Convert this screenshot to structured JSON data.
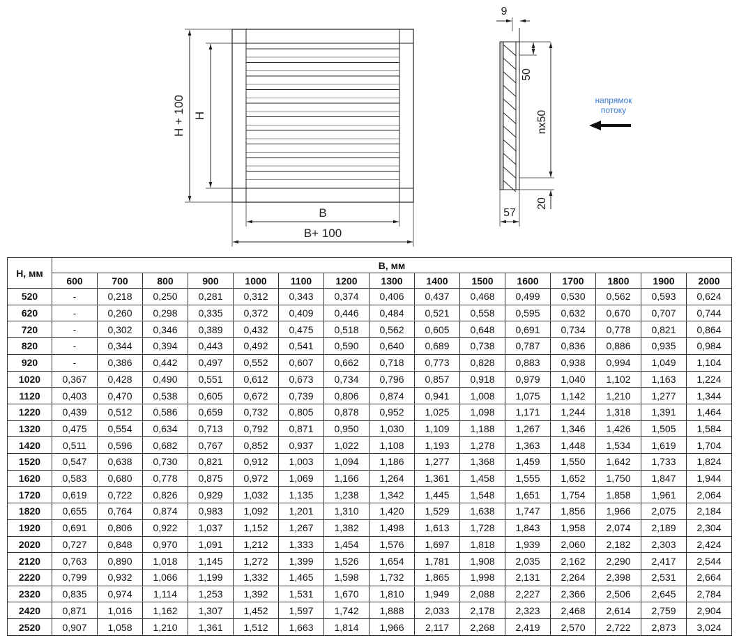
{
  "drawing": {
    "front_view": {
      "height_total": "H + 100",
      "height": "H",
      "width": "B",
      "width_total": "B+ 100"
    },
    "side_view": {
      "gap": "9",
      "pitch": "50",
      "louvers": "nx50",
      "bottom": "20",
      "depth": "57"
    },
    "flow_direction": [
      "напрямок",
      "потоку"
    ]
  },
  "table": {
    "row_header": "H, мм",
    "column_header": "B, мм",
    "columns": [
      "600",
      "700",
      "800",
      "900",
      "1000",
      "1100",
      "1200",
      "1300",
      "1400",
      "1500",
      "1600",
      "1700",
      "1800",
      "1900",
      "2000"
    ],
    "rows": [
      {
        "h": "520",
        "cells": [
          "-",
          "0,218",
          "0,250",
          "0,281",
          "0,312",
          "0,343",
          "0,374",
          "0,406",
          "0,437",
          "0,468",
          "0,499",
          "0,530",
          "0,562",
          "0,593",
          "0,624"
        ]
      },
      {
        "h": "620",
        "cells": [
          "-",
          "0,260",
          "0,298",
          "0,335",
          "0,372",
          "0,409",
          "0,446",
          "0,484",
          "0,521",
          "0,558",
          "0,595",
          "0,632",
          "0,670",
          "0,707",
          "0,744"
        ]
      },
      {
        "h": "720",
        "cells": [
          "-",
          "0,302",
          "0,346",
          "0,389",
          "0,432",
          "0,475",
          "0,518",
          "0,562",
          "0,605",
          "0,648",
          "0,691",
          "0,734",
          "0,778",
          "0,821",
          "0,864"
        ]
      },
      {
        "h": "820",
        "cells": [
          "-",
          "0,344",
          "0,394",
          "0,443",
          "0,492",
          "0,541",
          "0,590",
          "0,640",
          "0,689",
          "0,738",
          "0,787",
          "0,836",
          "0,886",
          "0,935",
          "0,984"
        ]
      },
      {
        "h": "920",
        "cells": [
          "-",
          "0,386",
          "0,442",
          "0,497",
          "0,552",
          "0,607",
          "0,662",
          "0,718",
          "0,773",
          "0,828",
          "0,883",
          "0,938",
          "0,994",
          "1,049",
          "1,104"
        ]
      },
      {
        "h": "1020",
        "cells": [
          "0,367",
          "0,428",
          "0,490",
          "0,551",
          "0,612",
          "0,673",
          "0,734",
          "0,796",
          "0,857",
          "0,918",
          "0,979",
          "1,040",
          "1,102",
          "1,163",
          "1,224"
        ]
      },
      {
        "h": "1120",
        "cells": [
          "0,403",
          "0,470",
          "0,538",
          "0,605",
          "0,672",
          "0,739",
          "0,806",
          "0,874",
          "0,941",
          "1,008",
          "1,075",
          "1,142",
          "1,210",
          "1,277",
          "1,344"
        ]
      },
      {
        "h": "1220",
        "cells": [
          "0,439",
          "0,512",
          "0,586",
          "0,659",
          "0,732",
          "0,805",
          "0,878",
          "0,952",
          "1,025",
          "1,098",
          "1,171",
          "1,244",
          "1,318",
          "1,391",
          "1,464"
        ]
      },
      {
        "h": "1320",
        "cells": [
          "0,475",
          "0,554",
          "0,634",
          "0,713",
          "0,792",
          "0,871",
          "0,950",
          "1,030",
          "1,109",
          "1,188",
          "1,267",
          "1,346",
          "1,426",
          "1,505",
          "1,584"
        ]
      },
      {
        "h": "1420",
        "cells": [
          "0,511",
          "0,596",
          "0,682",
          "0,767",
          "0,852",
          "0,937",
          "1,022",
          "1,108",
          "1,193",
          "1,278",
          "1,363",
          "1,448",
          "1,534",
          "1,619",
          "1,704"
        ]
      },
      {
        "h": "1520",
        "cells": [
          "0,547",
          "0,638",
          "0,730",
          "0,821",
          "0,912",
          "1,003",
          "1,094",
          "1,186",
          "1,277",
          "1,368",
          "1,459",
          "1,550",
          "1,642",
          "1,733",
          "1,824"
        ]
      },
      {
        "h": "1620",
        "cells": [
          "0,583",
          "0,680",
          "0,778",
          "0,875",
          "0,972",
          "1,069",
          "1,166",
          "1,264",
          "1,361",
          "1,458",
          "1,555",
          "1,652",
          "1,750",
          "1,847",
          "1,944"
        ]
      },
      {
        "h": "1720",
        "cells": [
          "0,619",
          "0,722",
          "0,826",
          "0,929",
          "1,032",
          "1,135",
          "1,238",
          "1,342",
          "1,445",
          "1,548",
          "1,651",
          "1,754",
          "1,858",
          "1,961",
          "2,064"
        ]
      },
      {
        "h": "1820",
        "cells": [
          "0,655",
          "0,764",
          "0,874",
          "0,983",
          "1,092",
          "1,201",
          "1,310",
          "1,420",
          "1,529",
          "1,638",
          "1,747",
          "1,856",
          "1,966",
          "2,075",
          "2,184"
        ]
      },
      {
        "h": "1920",
        "cells": [
          "0,691",
          "0,806",
          "0,922",
          "1,037",
          "1,152",
          "1,267",
          "1,382",
          "1,498",
          "1,613",
          "1,728",
          "1,843",
          "1,958",
          "2,074",
          "2,189",
          "2,304"
        ]
      },
      {
        "h": "2020",
        "cells": [
          "0,727",
          "0,848",
          "0,970",
          "1,091",
          "1,212",
          "1,333",
          "1,454",
          "1,576",
          "1,697",
          "1,818",
          "1,939",
          "2,060",
          "2,182",
          "2,303",
          "2,424"
        ]
      },
      {
        "h": "2120",
        "cells": [
          "0,763",
          "0,890",
          "1,018",
          "1,145",
          "1,272",
          "1,399",
          "1,526",
          "1,654",
          "1,781",
          "1,908",
          "2,035",
          "2,162",
          "2,290",
          "2,417",
          "2,544"
        ]
      },
      {
        "h": "2220",
        "cells": [
          "0,799",
          "0,932",
          "1,066",
          "1,199",
          "1,332",
          "1,465",
          "1,598",
          "1,732",
          "1,865",
          "1,998",
          "2,131",
          "2,264",
          "2,398",
          "2,531",
          "2,664"
        ]
      },
      {
        "h": "2320",
        "cells": [
          "0,835",
          "0,974",
          "1,114",
          "1,253",
          "1,392",
          "1,531",
          "1,670",
          "1,810",
          "1,949",
          "2,088",
          "2,227",
          "2,366",
          "2,506",
          "2,645",
          "2,784"
        ]
      },
      {
        "h": "2420",
        "cells": [
          "0,871",
          "1,016",
          "1,162",
          "1,307",
          "1,452",
          "1,597",
          "1,742",
          "1,888",
          "2,033",
          "2,178",
          "2,323",
          "2,468",
          "2,614",
          "2,759",
          "2,904"
        ]
      },
      {
        "h": "2520",
        "cells": [
          "0,907",
          "1,058",
          "1,210",
          "1,361",
          "1,512",
          "1,663",
          "1,814",
          "1,966",
          "2,117",
          "2,268",
          "2,419",
          "2,570",
          "2,722",
          "2,873",
          "3,024"
        ]
      }
    ]
  }
}
